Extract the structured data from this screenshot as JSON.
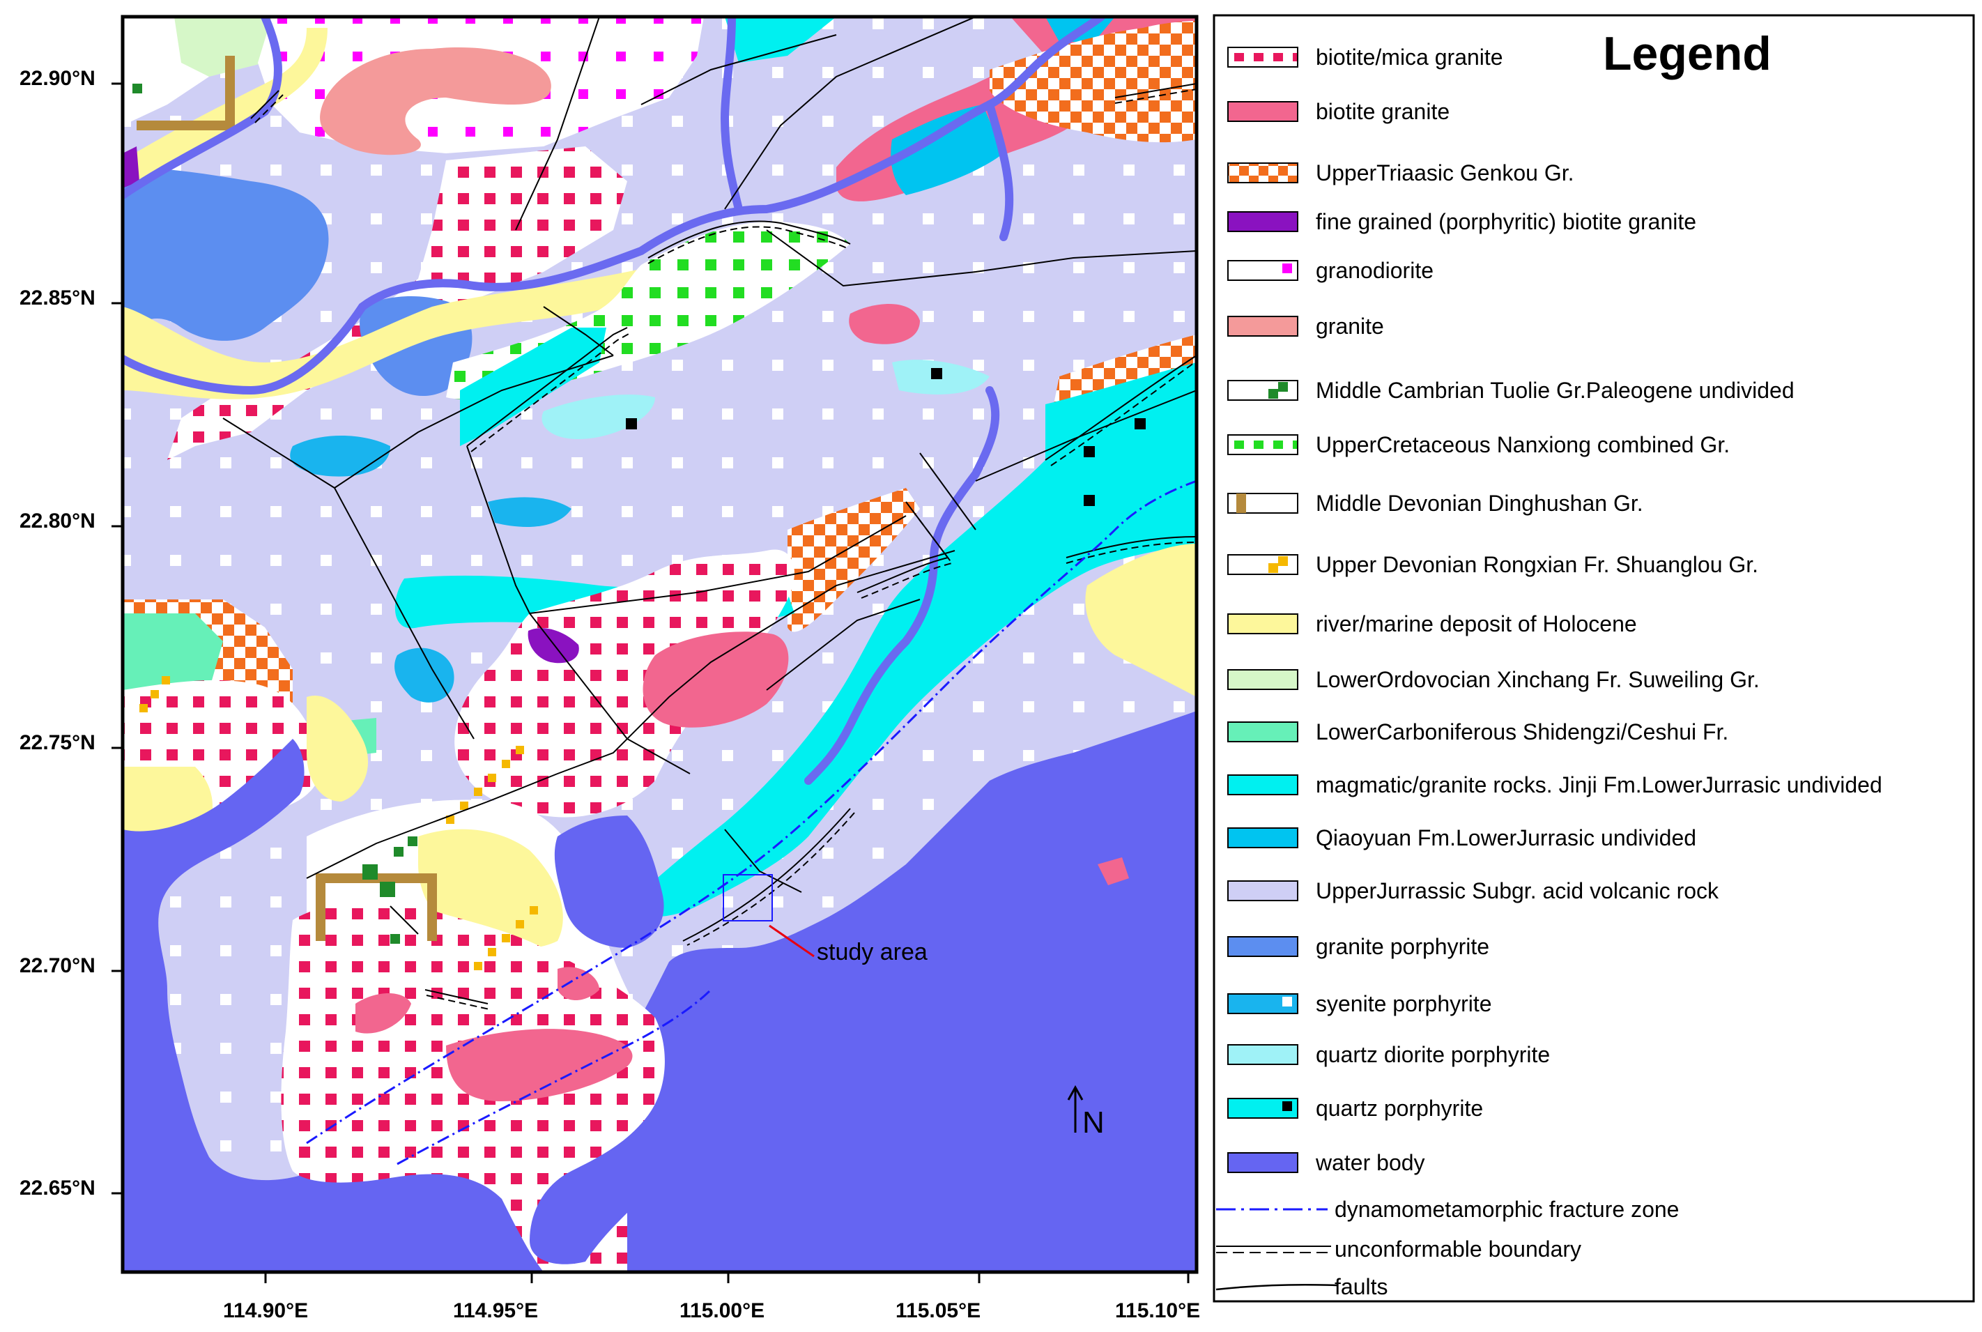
{
  "map": {
    "lat_labels": [
      "22.90°N",
      "22.85°N",
      "22.80°N",
      "22.75°N",
      "22.70°N",
      "22.65°N"
    ],
    "lon_labels": [
      "114.90°E",
      "114.95°E",
      "115.00°E",
      "115.05°E",
      "115.10°E"
    ],
    "study_area_label": "study area",
    "north_label": "N"
  },
  "legend": {
    "title": "Legend",
    "items": [
      {
        "label": "biotite/mica granite",
        "fill": "#ffffff",
        "mark": "#e8175d",
        "pattern": "dots"
      },
      {
        "label": "biotite granite",
        "fill": "#f2668f",
        "pattern": "solid"
      },
      {
        "label": "UpperTriaasic Genkou Gr.",
        "fill": "#ffffff",
        "mark": "#f26d1d",
        "pattern": "checker"
      },
      {
        "label": "fine grained (porphyritic) biotite granite",
        "fill": "#8a12c0",
        "pattern": "solid"
      },
      {
        "label": "granodiorite",
        "fill": "#ffffff",
        "mark": "#ff00ff",
        "pattern": "corner-square"
      },
      {
        "label": "granite",
        "fill": "#f49a9a",
        "pattern": "solid"
      },
      {
        "label": "Middle Cambrian Tuolie Gr.Paleogene undivided",
        "fill": "#ffffff",
        "mark": "#1f8a2a",
        "pattern": "step"
      },
      {
        "label": "UpperCretaceous Nanxiong combined Gr.",
        "fill": "#ffffff",
        "mark": "#22dd22",
        "pattern": "dots"
      },
      {
        "label": "Middle Devonian Dinghushan Gr.",
        "fill": "#ffffff",
        "mark": "#b58a3c",
        "pattern": "left-bar"
      },
      {
        "label": "Upper Devonian Rongxian Fr. Shuanglou Gr.",
        "fill": "#ffffff",
        "mark": "#f5b800",
        "pattern": "step"
      },
      {
        "label": "river/marine deposit of Holocene",
        "fill": "#fdf79b",
        "pattern": "solid"
      },
      {
        "label": "LowerOrdovocian Xinchang Fr. Suweiling Gr.",
        "fill": "#d6f7c8",
        "pattern": "solid"
      },
      {
        "label": "LowerCarboniferous Shidengzi/Ceshui Fr.",
        "fill": "#66f0b8",
        "pattern": "solid"
      },
      {
        "label": "magmatic/granite rocks. Jinji Fm.LowerJurrasic undivided",
        "fill": "#00f0f0",
        "pattern": "solid"
      },
      {
        "label": "Qiaoyuan Fm.LowerJurrasic undivided",
        "fill": "#00c4f0",
        "pattern": "solid"
      },
      {
        "label": "UpperJurrassic Subgr. acid volcanic rock",
        "fill": "#cfcff5",
        "pattern": "solid"
      },
      {
        "label": "granite porphyrite",
        "fill": "#5c8ef0",
        "pattern": "solid"
      },
      {
        "label": "syenite porphyrite",
        "fill": "#19b4ee",
        "mark": "#ffffff",
        "pattern": "corner-square"
      },
      {
        "label": "quartz diorite porphyrite",
        "fill": "#9ff2f7",
        "pattern": "solid"
      },
      {
        "label": "quartz porphyrite",
        "fill": "#00f0f0",
        "mark": "#000000",
        "pattern": "corner-square"
      },
      {
        "label": "water body",
        "fill": "#6565f2",
        "pattern": "solid"
      }
    ],
    "lines": [
      {
        "label": "dynamometamorphic fracture zone",
        "color": "#1a1aff",
        "style": "dashdot"
      },
      {
        "label": "unconformable boundary",
        "color": "#000000",
        "style": "double"
      },
      {
        "label": "faults",
        "color": "#000000",
        "style": "solid"
      }
    ]
  }
}
